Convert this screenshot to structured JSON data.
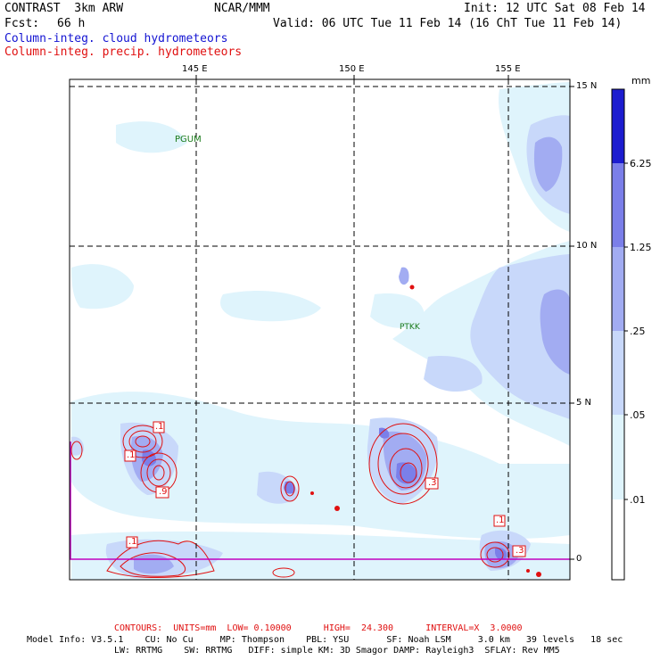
{
  "header": {
    "title_left": "CONTRAST  3km ARW",
    "title_center": "NCAR/MMM",
    "init": "Init: 12 UTC Sat 08 Feb 14",
    "fcst_label": "Fcst:",
    "fcst_value": "66 h",
    "valid": "Valid: 06 UTC Tue 11 Feb 14 (16 ChT Tue 11 Feb 14)",
    "field1": "Column-integ. cloud hydrometeors",
    "field2": "Column-integ. precip. hydrometeors"
  },
  "map": {
    "lon_labels": [
      "145 E",
      "150 E",
      "155 E"
    ],
    "lat_labels": [
      "15 N",
      "10 N",
      "5 N",
      "0"
    ],
    "stations": [
      "PGUM",
      "PTKK"
    ],
    "contour_labels": [
      ".1",
      ".1",
      ".9",
      ".1",
      ".3",
      ".1",
      ".3"
    ]
  },
  "colorbar": {
    "units": "mm",
    "levels": [
      "6.25",
      "1.25",
      ".25",
      ".05",
      ".01"
    ],
    "colors": [
      "#ffffff",
      "#dff4fc",
      "#c8d8fa",
      "#a2acf2",
      "#7b7fe9",
      "#4b4ee4",
      "#1c1ccf"
    ]
  },
  "footer": {
    "contours": "CONTOURS:  UNITS=mm  LOW= 0.10000      HIGH=  24.300      INTERVAL=X  3.0000",
    "model_line1": "Model Info: V3.5.1    CU: No Cu     MP: Thompson    PBL: YSU       SF: Noah LSM     3.0 km   39 levels   18 sec",
    "model_line2": "LW: RRTMG    SW: RRTMG   DIFF: simple KM: 3D Smagor DAMP: Rayleigh3  SFLAY: Rev MM5"
  }
}
